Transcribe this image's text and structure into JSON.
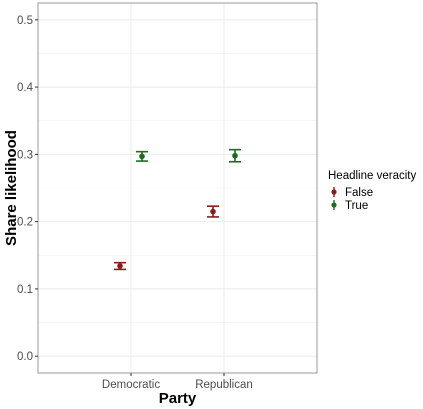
{
  "chart_data": {
    "type": "scatter",
    "xlabel": "Party",
    "ylabel": "Share likelihood",
    "categories": [
      "Democratic",
      "Republican"
    ],
    "ylim": [
      -0.025,
      0.525
    ],
    "yticks": [
      "0.0",
      "0.1",
      "0.2",
      "0.3",
      "0.4",
      "0.5"
    ],
    "grid": true,
    "legend": {
      "title": "Headline veracity",
      "placement": "right"
    },
    "series": [
      {
        "name": "False",
        "color": "#8b1a1a",
        "values": [
          0.134,
          0.215
        ],
        "ci_low": [
          0.129,
          0.207
        ],
        "ci_high": [
          0.139,
          0.223
        ]
      },
      {
        "name": "True",
        "color": "#1e6b1e",
        "values": [
          0.297,
          0.298
        ],
        "ci_low": [
          0.29,
          0.289
        ],
        "ci_high": [
          0.304,
          0.307
        ]
      }
    ]
  }
}
